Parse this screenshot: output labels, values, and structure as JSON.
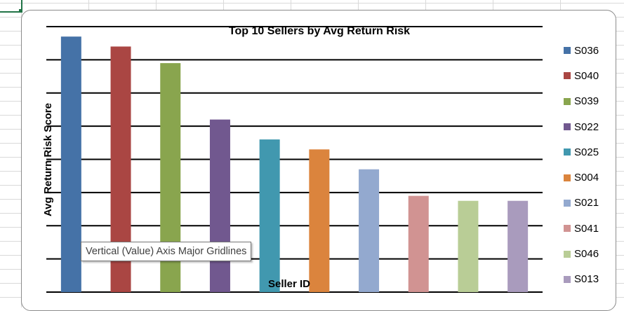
{
  "chart_data": {
    "type": "bar",
    "title": "Top 10 Sellers by Avg Return Risk",
    "xlabel": "Seller ID",
    "ylabel": "Avg Return Risk Score",
    "categories": [
      "S036",
      "S040",
      "S039",
      "S022",
      "S025",
      "S004",
      "S021",
      "S041",
      "S046",
      "S013"
    ],
    "values": [
      7.7,
      7.4,
      6.9,
      5.2,
      4.6,
      4.3,
      3.7,
      2.9,
      2.75,
      2.75
    ],
    "ylim": [
      0,
      8
    ],
    "grid": true,
    "legend_position": "right",
    "colors": [
      "#4572a7",
      "#aa4643",
      "#89a54e",
      "#71588f",
      "#4198af",
      "#db843d",
      "#93a9cf",
      "#d19392",
      "#b9cd96",
      "#a99bbd"
    ]
  },
  "tooltip": {
    "text": "Vertical (Value) Axis Major Gridlines"
  }
}
